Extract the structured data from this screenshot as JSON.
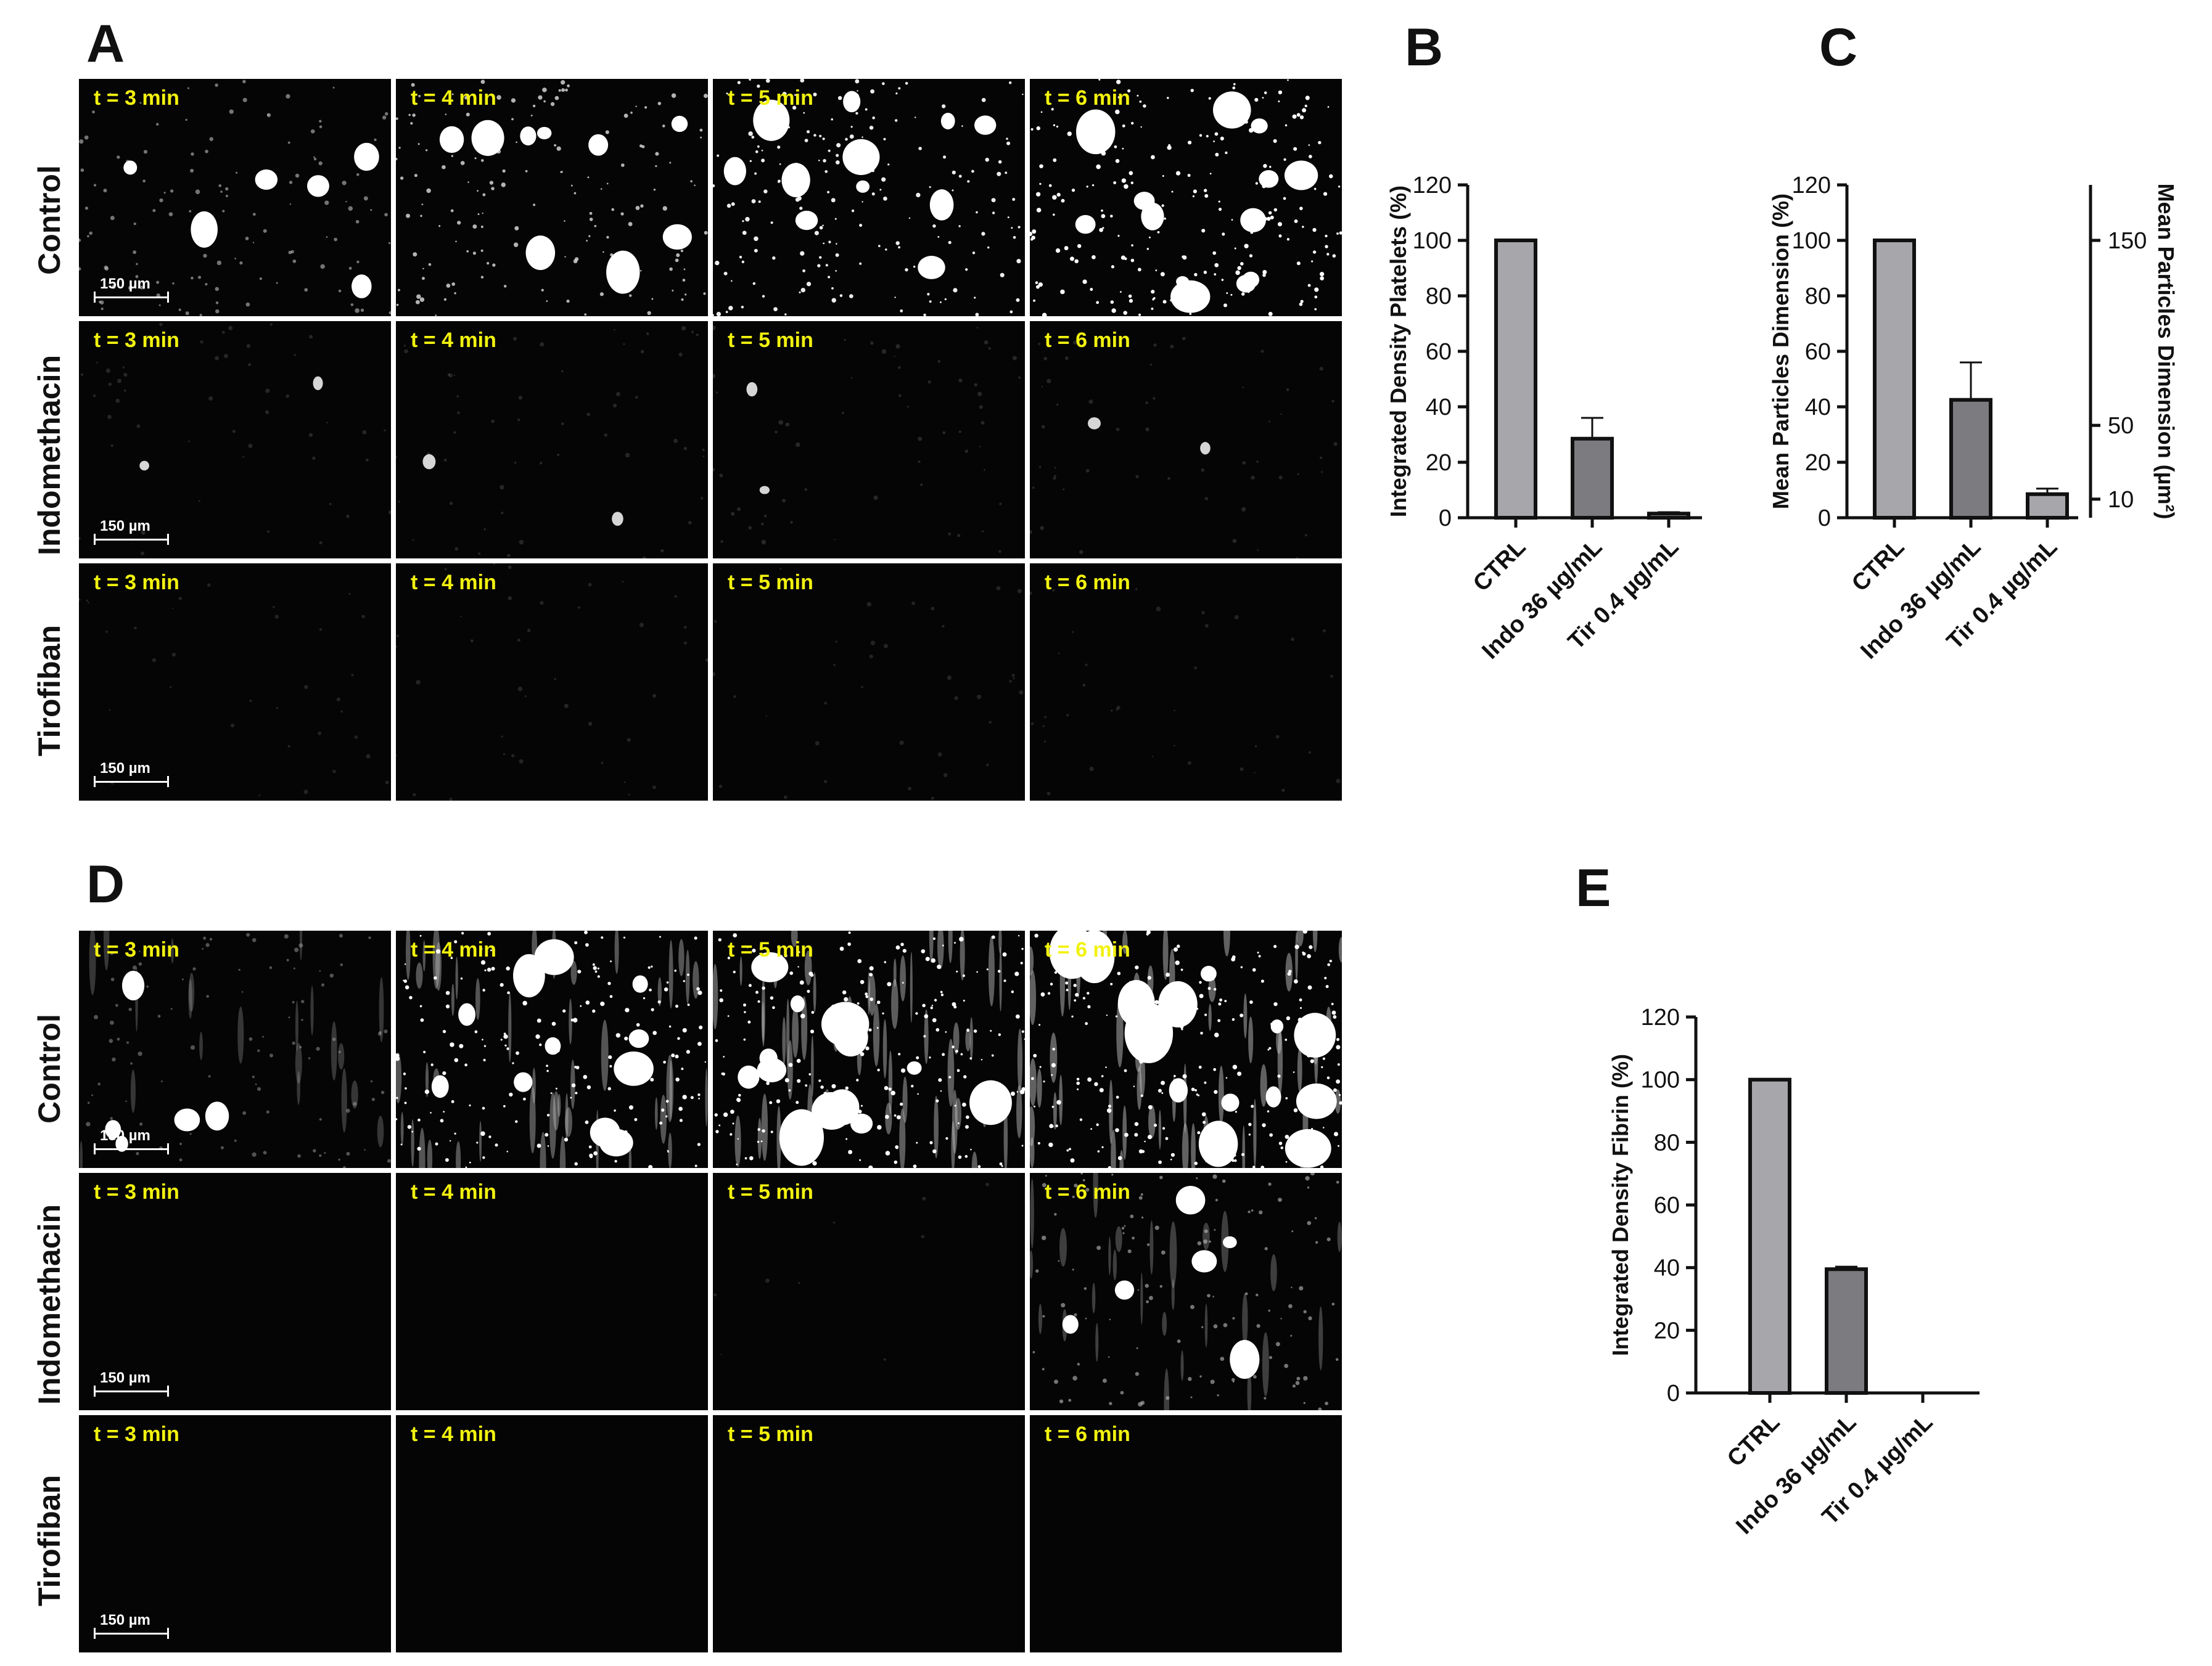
{
  "panels": {
    "A": "A",
    "B": "B",
    "C": "C",
    "D": "D",
    "E": "E"
  },
  "time_labels": [
    "t = 3 min",
    "t = 4 min",
    "t = 5 min",
    "t = 6 min"
  ],
  "scale_bar": "150 µm",
  "row_labels": [
    "Control",
    "Indomethacin",
    "Tirofiban"
  ],
  "chart_data": [
    {
      "panel": "B",
      "type": "bar",
      "categories": [
        "CTRL",
        "Indo 36 µg/mL",
        "Tir 0.4 µg/mL"
      ],
      "values": [
        100,
        28.5,
        1.5
      ],
      "errors": [
        0,
        7.5,
        0.5
      ],
      "ylabel": "Integrated Density Platelets (%)",
      "ylim": [
        0,
        120
      ],
      "yticks": [
        0,
        20,
        40,
        60,
        80,
        100,
        120
      ],
      "colors": [
        "#a7a7ab",
        "#7c7c80",
        "#a7a7ab"
      ]
    },
    {
      "panel": "C",
      "type": "bar",
      "categories": [
        "CTRL",
        "Indo 36 µg/mL",
        "Tir 0.4 µg/mL"
      ],
      "values": [
        100,
        42.5,
        8.5
      ],
      "errors": [
        0,
        13.5,
        2
      ],
      "ylabel": "Mean Particles Dimension (%)",
      "ylabel_right": "Mean Particles Dimension (µm²)",
      "ylim": [
        0,
        120
      ],
      "yticks": [
        0,
        20,
        40,
        60,
        80,
        100,
        120
      ],
      "yticks_right": [
        10,
        50,
        150
      ],
      "colors": [
        "#a7a7ab",
        "#7c7c80",
        "#a7a7ab"
      ]
    },
    {
      "panel": "E",
      "type": "bar",
      "categories": [
        "CTRL",
        "Indo 36 µg/mL",
        "Tir 0.4 µg/mL"
      ],
      "values": [
        100,
        39.5,
        0
      ],
      "errors": [
        0,
        0.8,
        0
      ],
      "ylabel": "Integrated Density Fibrin (%)",
      "ylim": [
        0,
        120
      ],
      "yticks": [
        0,
        20,
        40,
        60,
        80,
        100,
        120
      ],
      "colors": [
        "#a7a7ab",
        "#7c7c80",
        "#a7a7ab"
      ]
    }
  ],
  "microscopy_intensity": {
    "A": [
      [
        0.45,
        0.62,
        0.75,
        0.9
      ],
      [
        0.12,
        0.13,
        0.14,
        0.12
      ],
      [
        0.05,
        0.06,
        0.05,
        0.05
      ]
    ],
    "D": [
      [
        0.35,
        0.8,
        0.95,
        1.0
      ],
      [
        0.0,
        0.0,
        0.04,
        0.45
      ],
      [
        0.0,
        0.0,
        0.0,
        0.0
      ]
    ]
  },
  "colors": {
    "label_yellow": "#f2f20f",
    "bar_light": "#a7a7ab",
    "bar_dark": "#7c7c80"
  }
}
